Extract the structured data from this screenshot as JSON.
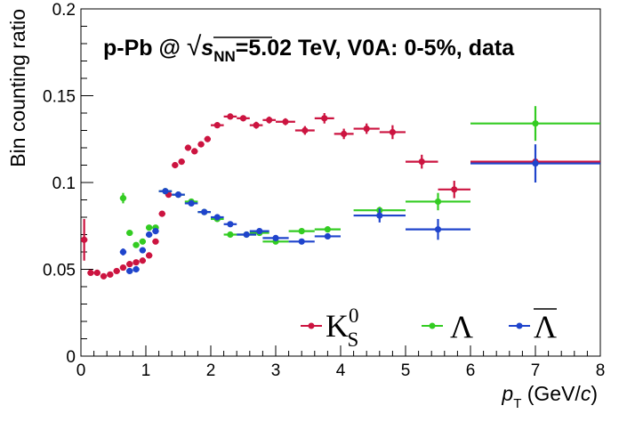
{
  "chart_data": {
    "type": "scatter",
    "title": "p-Pb @ √s_NN=5.02 TeV, V0A: 0-5%, data",
    "header": {
      "prefix": "p-Pb @ ",
      "sqrt_sign": "√",
      "sqrt_s": "s",
      "sqrt_sub": "NN",
      "suffix": "=5.02 TeV, V0A: 0-5%, data"
    },
    "xlabel": {
      "main": "p",
      "sub": "T",
      "unit_pre": " (GeV/",
      "unit_c": "c",
      "unit_post": ")"
    },
    "ylabel": "Bin counting ratio",
    "xlim": [
      0,
      8
    ],
    "ylim": [
      0,
      0.2
    ],
    "x_ticks": [
      "0",
      "1",
      "2",
      "3",
      "4",
      "5",
      "6",
      "7",
      "8"
    ],
    "y_ticks": [
      "0",
      "0.05",
      "0.1",
      "0.15",
      "0.2"
    ],
    "grid": false,
    "legend": {
      "placement": "bottom-right",
      "k0s": {
        "main": "K",
        "sup": "0",
        "sub": "S"
      },
      "lambda": "Λ",
      "antilambda": "Λ"
    },
    "series": [
      {
        "id": "k0s",
        "color": "#cc1440",
        "points": [
          {
            "x": 0.05,
            "y": 0.067,
            "xerr": 0.05,
            "yerr": 0.012
          },
          {
            "x": 0.15,
            "y": 0.048,
            "xerr": 0.05,
            "yerr": 0.001
          },
          {
            "x": 0.25,
            "y": 0.048,
            "xerr": 0.05,
            "yerr": 0.001
          },
          {
            "x": 0.35,
            "y": 0.046,
            "xerr": 0.05,
            "yerr": 0.001
          },
          {
            "x": 0.45,
            "y": 0.047,
            "xerr": 0.05,
            "yerr": 0.001
          },
          {
            "x": 0.55,
            "y": 0.049,
            "xerr": 0.05,
            "yerr": 0.001
          },
          {
            "x": 0.65,
            "y": 0.051,
            "xerr": 0.05,
            "yerr": 0.001
          },
          {
            "x": 0.75,
            "y": 0.053,
            "xerr": 0.05,
            "yerr": 0.001
          },
          {
            "x": 0.85,
            "y": 0.054,
            "xerr": 0.05,
            "yerr": 0.001
          },
          {
            "x": 0.95,
            "y": 0.055,
            "xerr": 0.05,
            "yerr": 0.001
          },
          {
            "x": 1.05,
            "y": 0.058,
            "xerr": 0.05,
            "yerr": 0.001
          },
          {
            "x": 1.15,
            "y": 0.066,
            "xerr": 0.05,
            "yerr": 0.001
          },
          {
            "x": 1.25,
            "y": 0.082,
            "xerr": 0.05,
            "yerr": 0.001
          },
          {
            "x": 1.35,
            "y": 0.093,
            "xerr": 0.05,
            "yerr": 0.001
          },
          {
            "x": 1.45,
            "y": 0.11,
            "xerr": 0.05,
            "yerr": 0.001
          },
          {
            "x": 1.55,
            "y": 0.112,
            "xerr": 0.05,
            "yerr": 0.001
          },
          {
            "x": 1.65,
            "y": 0.12,
            "xerr": 0.05,
            "yerr": 0.0015
          },
          {
            "x": 1.75,
            "y": 0.118,
            "xerr": 0.05,
            "yerr": 0.0015
          },
          {
            "x": 1.85,
            "y": 0.122,
            "xerr": 0.05,
            "yerr": 0.0015
          },
          {
            "x": 1.95,
            "y": 0.125,
            "xerr": 0.05,
            "yerr": 0.0015
          },
          {
            "x": 2.1,
            "y": 0.133,
            "xerr": 0.1,
            "yerr": 0.0015
          },
          {
            "x": 2.3,
            "y": 0.138,
            "xerr": 0.1,
            "yerr": 0.0015
          },
          {
            "x": 2.5,
            "y": 0.137,
            "xerr": 0.1,
            "yerr": 0.0015
          },
          {
            "x": 2.7,
            "y": 0.133,
            "xerr": 0.1,
            "yerr": 0.002
          },
          {
            "x": 2.9,
            "y": 0.136,
            "xerr": 0.1,
            "yerr": 0.002
          },
          {
            "x": 3.15,
            "y": 0.135,
            "xerr": 0.15,
            "yerr": 0.002
          },
          {
            "x": 3.45,
            "y": 0.13,
            "xerr": 0.15,
            "yerr": 0.0025
          },
          {
            "x": 3.75,
            "y": 0.137,
            "xerr": 0.15,
            "yerr": 0.003
          },
          {
            "x": 4.05,
            "y": 0.128,
            "xerr": 0.15,
            "yerr": 0.003
          },
          {
            "x": 4.4,
            "y": 0.131,
            "xerr": 0.2,
            "yerr": 0.003
          },
          {
            "x": 4.8,
            "y": 0.129,
            "xerr": 0.2,
            "yerr": 0.004
          },
          {
            "x": 5.25,
            "y": 0.112,
            "xerr": 0.25,
            "yerr": 0.004
          },
          {
            "x": 5.75,
            "y": 0.096,
            "xerr": 0.25,
            "yerr": 0.005
          },
          {
            "x": 7.0,
            "y": 0.112,
            "xerr": 1.0,
            "yerr": 0.001
          }
        ]
      },
      {
        "id": "lambda",
        "color": "#33cc22",
        "points": [
          {
            "x": 0.65,
            "y": 0.091,
            "xerr": 0.05,
            "yerr": 0.003
          },
          {
            "x": 0.75,
            "y": 0.071,
            "xerr": 0.05,
            "yerr": 0.0015
          },
          {
            "x": 0.85,
            "y": 0.064,
            "xerr": 0.05,
            "yerr": 0.0015
          },
          {
            "x": 0.95,
            "y": 0.066,
            "xerr": 0.05,
            "yerr": 0.001
          },
          {
            "x": 1.05,
            "y": 0.074,
            "xerr": 0.05,
            "yerr": 0.001
          },
          {
            "x": 1.15,
            "y": 0.074,
            "xerr": 0.05,
            "yerr": 0.001
          },
          {
            "x": 1.3,
            "y": 0.095,
            "xerr": 0.1,
            "yerr": 0.001
          },
          {
            "x": 1.5,
            "y": 0.093,
            "xerr": 0.1,
            "yerr": 0.001
          },
          {
            "x": 1.7,
            "y": 0.089,
            "xerr": 0.1,
            "yerr": 0.001
          },
          {
            "x": 1.9,
            "y": 0.083,
            "xerr": 0.1,
            "yerr": 0.001
          },
          {
            "x": 2.1,
            "y": 0.079,
            "xerr": 0.1,
            "yerr": 0.001
          },
          {
            "x": 2.3,
            "y": 0.07,
            "xerr": 0.1,
            "yerr": 0.001
          },
          {
            "x": 2.55,
            "y": 0.07,
            "xerr": 0.15,
            "yerr": 0.001
          },
          {
            "x": 2.75,
            "y": 0.071,
            "xerr": 0.15,
            "yerr": 0.001
          },
          {
            "x": 3.0,
            "y": 0.066,
            "xerr": 0.2,
            "yerr": 0.001
          },
          {
            "x": 3.4,
            "y": 0.072,
            "xerr": 0.2,
            "yerr": 0.001
          },
          {
            "x": 3.8,
            "y": 0.073,
            "xerr": 0.2,
            "yerr": 0.001
          },
          {
            "x": 4.6,
            "y": 0.084,
            "xerr": 0.4,
            "yerr": 0.002
          },
          {
            "x": 5.5,
            "y": 0.089,
            "xerr": 0.5,
            "yerr": 0.005
          },
          {
            "x": 7.0,
            "y": 0.134,
            "xerr": 1.0,
            "yerr": 0.01
          }
        ]
      },
      {
        "id": "antilambda",
        "color": "#1f44cc",
        "points": [
          {
            "x": 0.65,
            "y": 0.06,
            "xerr": 0.05,
            "yerr": 0.002
          },
          {
            "x": 0.75,
            "y": 0.049,
            "xerr": 0.05,
            "yerr": 0.0015
          },
          {
            "x": 0.85,
            "y": 0.05,
            "xerr": 0.05,
            "yerr": 0.0015
          },
          {
            "x": 0.95,
            "y": 0.061,
            "xerr": 0.05,
            "yerr": 0.001
          },
          {
            "x": 1.05,
            "y": 0.07,
            "xerr": 0.05,
            "yerr": 0.001
          },
          {
            "x": 1.15,
            "y": 0.072,
            "xerr": 0.05,
            "yerr": 0.001
          },
          {
            "x": 1.3,
            "y": 0.095,
            "xerr": 0.1,
            "yerr": 0.001
          },
          {
            "x": 1.5,
            "y": 0.093,
            "xerr": 0.1,
            "yerr": 0.001
          },
          {
            "x": 1.7,
            "y": 0.088,
            "xerr": 0.1,
            "yerr": 0.001
          },
          {
            "x": 1.9,
            "y": 0.083,
            "xerr": 0.1,
            "yerr": 0.001
          },
          {
            "x": 2.1,
            "y": 0.08,
            "xerr": 0.1,
            "yerr": 0.001
          },
          {
            "x": 2.3,
            "y": 0.076,
            "xerr": 0.1,
            "yerr": 0.001
          },
          {
            "x": 2.55,
            "y": 0.07,
            "xerr": 0.15,
            "yerr": 0.001
          },
          {
            "x": 2.75,
            "y": 0.072,
            "xerr": 0.15,
            "yerr": 0.001
          },
          {
            "x": 3.0,
            "y": 0.068,
            "xerr": 0.2,
            "yerr": 0.001
          },
          {
            "x": 3.4,
            "y": 0.066,
            "xerr": 0.2,
            "yerr": 0.001
          },
          {
            "x": 3.8,
            "y": 0.069,
            "xerr": 0.2,
            "yerr": 0.001
          },
          {
            "x": 4.6,
            "y": 0.081,
            "xerr": 0.4,
            "yerr": 0.004
          },
          {
            "x": 5.5,
            "y": 0.073,
            "xerr": 0.5,
            "yerr": 0.006
          },
          {
            "x": 7.0,
            "y": 0.111,
            "xerr": 1.0,
            "yerr": 0.011
          }
        ]
      }
    ]
  }
}
